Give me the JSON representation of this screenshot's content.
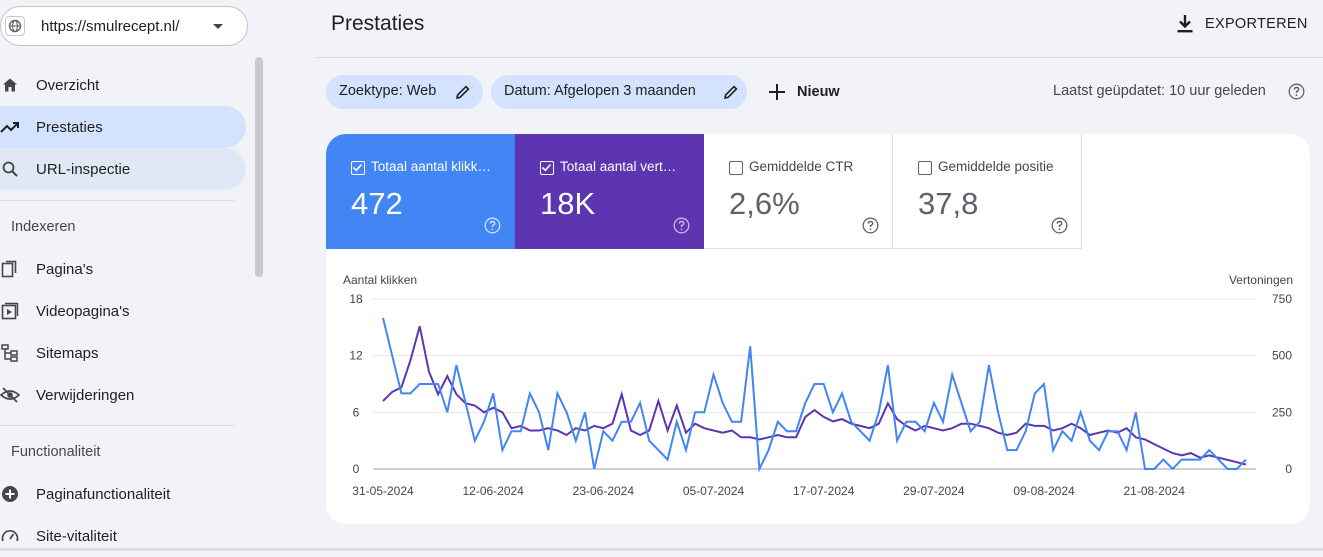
{
  "sidebar": {
    "property_url": "https://smulrecept.nl/",
    "items": [
      {
        "label": "Overzicht",
        "icon": "home-icon"
      },
      {
        "label": "Prestaties",
        "icon": "trending-up-icon"
      },
      {
        "label": "URL-inspectie",
        "icon": "search-icon"
      }
    ],
    "sections": [
      {
        "title": "Indexeren",
        "items": [
          {
            "label": "Pagina's",
            "icon": "pages-icon"
          },
          {
            "label": "Videopagina's",
            "icon": "video-pages-icon"
          },
          {
            "label": "Sitemaps",
            "icon": "sitemap-icon"
          },
          {
            "label": "Verwijderingen",
            "icon": "eye-off-icon"
          }
        ]
      },
      {
        "title": "Functionaliteit",
        "items": [
          {
            "label": "Paginafunctionaliteit",
            "icon": "plus-circle-icon"
          },
          {
            "label": "Site-vitaliteit",
            "icon": "gauge-icon"
          }
        ]
      }
    ]
  },
  "header": {
    "title": "Prestaties",
    "export_label": "EXPORTEREN"
  },
  "filters": {
    "chips": [
      {
        "label": "Zoektype: Web"
      },
      {
        "label": "Datum: Afgelopen 3 maanden"
      }
    ],
    "new_label": "Nieuw",
    "last_updated": "Laatst geüpdatet: 10 uur geleden"
  },
  "metrics": [
    {
      "label": "Totaal aantal klikk…",
      "value": "472",
      "checked": true,
      "color": "#4285f4"
    },
    {
      "label": "Totaal aantal vert…",
      "value": "18K",
      "checked": true,
      "color": "#5e35b1"
    },
    {
      "label": "Gemiddelde CTR",
      "value": "2,6%",
      "checked": false
    },
    {
      "label": "Gemiddelde positie",
      "value": "37,8",
      "checked": false
    }
  ],
  "chart_data": {
    "type": "line",
    "ylabel_left": "Aantal klikken",
    "ylabel_right": "Vertoningen",
    "ylim_left": [
      0,
      18
    ],
    "ylim_right": [
      0,
      750
    ],
    "yticks_left": [
      "0",
      "6",
      "12",
      "18"
    ],
    "yticks_right": [
      "0",
      "250",
      "500",
      "750"
    ],
    "xtick_labels": [
      "31-05-2024",
      "12-06-2024",
      "23-06-2024",
      "05-07-2024",
      "17-07-2024",
      "29-07-2024",
      "09-08-2024",
      "21-08-2024"
    ],
    "grid": true,
    "series": [
      {
        "axis": "left",
        "color": "#4285f4",
        "values": [
          16,
          12,
          8,
          8,
          9,
          9,
          9,
          6,
          11,
          7,
          3,
          5,
          8,
          2,
          4,
          4,
          8,
          6,
          2,
          8,
          6,
          3,
          6,
          0,
          4,
          3,
          5,
          5,
          7,
          3,
          2,
          1,
          5,
          2,
          6,
          6,
          10,
          7,
          5,
          5,
          13,
          0,
          2,
          5,
          4,
          4,
          7,
          9,
          9,
          6,
          8,
          5,
          4,
          3,
          6,
          11,
          3,
          5,
          5,
          4,
          7,
          5,
          10,
          7,
          4,
          5,
          11,
          6,
          2,
          2,
          4,
          8,
          9,
          2,
          4,
          3,
          6,
          3,
          2,
          4,
          4,
          2,
          6,
          0,
          0,
          1,
          0,
          1,
          1,
          1,
          2,
          1,
          0,
          0,
          1
        ]
      },
      {
        "axis": "right",
        "color": "#5e35b1",
        "values": [
          300,
          340,
          360,
          480,
          630,
          430,
          330,
          410,
          330,
          290,
          280,
          250,
          270,
          250,
          180,
          190,
          170,
          170,
          180,
          170,
          150,
          180,
          170,
          190,
          180,
          200,
          330,
          170,
          150,
          170,
          300,
          170,
          280,
          160,
          200,
          180,
          170,
          160,
          170,
          140,
          140,
          130,
          140,
          150,
          140,
          140,
          230,
          260,
          230,
          210,
          220,
          200,
          190,
          180,
          200,
          290,
          220,
          190,
          170,
          190,
          180,
          170,
          180,
          200,
          200,
          190,
          180,
          160,
          150,
          160,
          200,
          190,
          190,
          170,
          180,
          200,
          180,
          150,
          160,
          170,
          160,
          180,
          140,
          130,
          110,
          90,
          70,
          60,
          70,
          50,
          60,
          50,
          40,
          30,
          20
        ]
      }
    ]
  }
}
